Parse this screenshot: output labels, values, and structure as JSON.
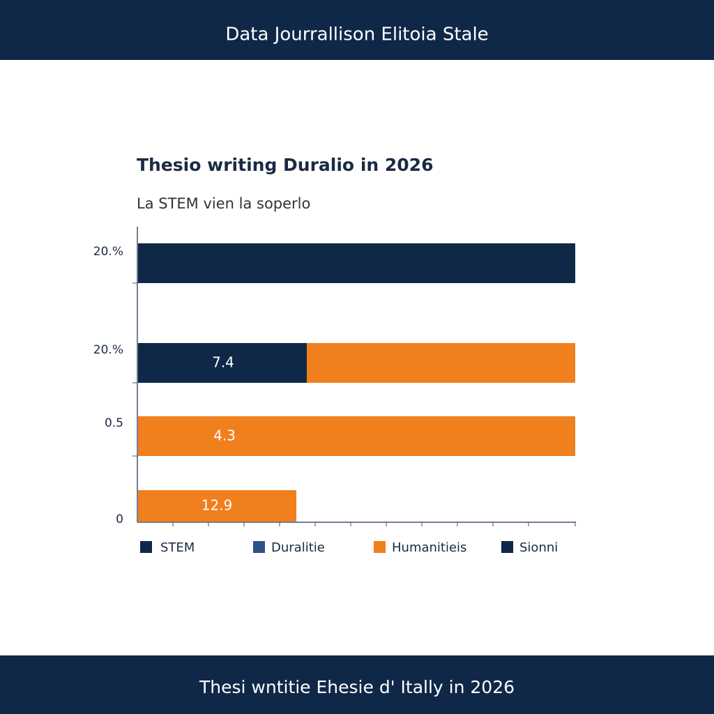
{
  "header": {
    "title": "Data Jourrallison Elitoia Stale"
  },
  "chart": {
    "title": "Thesio writing Duralio in 2026",
    "subtitle": "La STEM vien la soperlo",
    "rows": [
      {
        "label": "20.%"
      },
      {
        "label": "20.%",
        "bar_label": "7.4"
      },
      {
        "label": "0.5",
        "bar_label": "4.3"
      },
      {
        "label": "0",
        "bar_label": "12.9"
      }
    ],
    "legend": [
      "STEM",
      "Duralitie",
      "Humanitieis",
      "Sionni"
    ]
  },
  "footer": {
    "text": "Thesi wntitie Ehesie d' Itally in 2026"
  }
}
